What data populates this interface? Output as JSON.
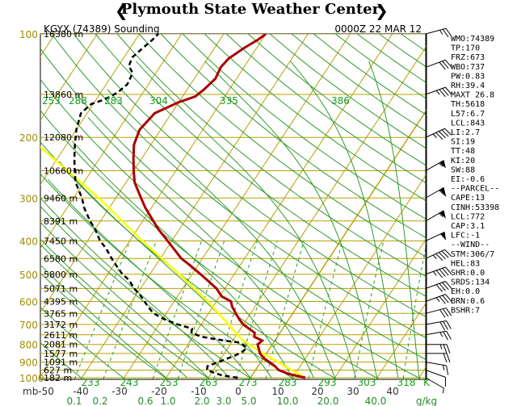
{
  "banner": "Plymouth State Weather Center",
  "header": {
    "station": "KGYX (74389) Sounding",
    "time": "0000Z 22 MAR 12"
  },
  "chart_data": {
    "type": "line",
    "pressure_levels": [
      100,
      200,
      300,
      400,
      500,
      600,
      700,
      800,
      900,
      1000
    ],
    "height_labels": [
      {
        "label": "16380 m",
        "p": 100
      },
      {
        "label": "13860 m",
        "p": 150
      },
      {
        "label": "12080 m",
        "p": 200
      },
      {
        "label": "10660 m",
        "p": 250
      },
      {
        "label": "9460 m",
        "p": 300
      },
      {
        "label": "8391 m",
        "p": 350
      },
      {
        "label": "7450 m",
        "p": 400
      },
      {
        "label": "6580 m",
        "p": 450
      },
      {
        "label": "5800 m",
        "p": 500
      },
      {
        "label": "5071 m",
        "p": 550
      },
      {
        "label": "4395 m",
        "p": 600
      },
      {
        "label": "3765 m",
        "p": 650
      },
      {
        "label": "3172 m",
        "p": 700
      },
      {
        "label": "2611 m",
        "p": 750
      },
      {
        "label": "2081 m",
        "p": 800
      },
      {
        "label": "1577 m",
        "p": 850
      },
      {
        "label": "1091 m",
        "p": 900
      },
      {
        "label": "627 m",
        "p": 950
      },
      {
        "label": "182 m",
        "p": 1000
      }
    ],
    "temperature_ticks": [
      "mb-50",
      "-40",
      "-30",
      "-20",
      "-10",
      "0",
      "10",
      "20",
      "30",
      "40"
    ],
    "mixing_ratio_ticks": [
      "0.1",
      "0.2",
      "0.6",
      "1.0",
      "2.0",
      "3.0",
      "5.0",
      "10.0",
      "20.0",
      "40.0",
      "g/kg"
    ],
    "theta_bottom": [
      "233",
      "243",
      "253",
      "263",
      "273",
      "283",
      "293",
      "303",
      "318",
      "K"
    ],
    "theta_top": [
      "253",
      "288",
      "283",
      "304",
      "335",
      "386"
    ],
    "temperature_profile": [
      {
        "p": 1000,
        "t": 13.0
      },
      {
        "p": 975,
        "t": 8.5
      },
      {
        "p": 950,
        "t": 5.5
      },
      {
        "p": 925,
        "t": 4.0
      },
      {
        "p": 900,
        "t": 2.0
      },
      {
        "p": 875,
        "t": 0.0
      },
      {
        "p": 850,
        "t": -1.5
      },
      {
        "p": 825,
        "t": -2.5
      },
      {
        "p": 800,
        "t": -3.5
      },
      {
        "p": 780,
        "t": -3.0
      },
      {
        "p": 760,
        "t": -5.5
      },
      {
        "p": 740,
        "t": -6.0
      },
      {
        "p": 720,
        "t": -8.0
      },
      {
        "p": 700,
        "t": -10.0
      },
      {
        "p": 680,
        "t": -11.5
      },
      {
        "p": 650,
        "t": -13.5
      },
      {
        "p": 620,
        "t": -15.5
      },
      {
        "p": 600,
        "t": -16.5
      },
      {
        "p": 580,
        "t": -19.5
      },
      {
        "p": 550,
        "t": -22.0
      },
      {
        "p": 520,
        "t": -25.5
      },
      {
        "p": 500,
        "t": -28.0
      },
      {
        "p": 470,
        "t": -32.0
      },
      {
        "p": 450,
        "t": -35.0
      },
      {
        "p": 420,
        "t": -38.5
      },
      {
        "p": 400,
        "t": -41.0
      },
      {
        "p": 370,
        "t": -45.0
      },
      {
        "p": 350,
        "t": -47.5
      },
      {
        "p": 320,
        "t": -51.5
      },
      {
        "p": 300,
        "t": -54.0
      },
      {
        "p": 270,
        "t": -58.0
      },
      {
        "p": 250,
        "t": -60.0
      },
      {
        "p": 230,
        "t": -62.0
      },
      {
        "p": 210,
        "t": -64.0
      },
      {
        "p": 190,
        "t": -65.0
      },
      {
        "p": 170,
        "t": -64.0
      },
      {
        "p": 158,
        "t": -60.0
      },
      {
        "p": 152,
        "t": -57.0
      },
      {
        "p": 145,
        "t": -56.0
      },
      {
        "p": 135,
        "t": -55.0
      },
      {
        "p": 125,
        "t": -55.5
      },
      {
        "p": 118,
        "t": -55.0
      },
      {
        "p": 110,
        "t": -53.0
      },
      {
        "p": 104,
        "t": -51.0
      },
      {
        "p": 100,
        "t": -50.0
      }
    ],
    "dewpoint_profile": [
      {
        "p": 1000,
        "t": -3.0
      },
      {
        "p": 985,
        "t": -7.0
      },
      {
        "p": 970,
        "t": -9.0
      },
      {
        "p": 950,
        "t": -11.5
      },
      {
        "p": 925,
        "t": -12.0
      },
      {
        "p": 900,
        "t": -10.0
      },
      {
        "p": 880,
        "t": -8.5
      },
      {
        "p": 860,
        "t": -7.0
      },
      {
        "p": 840,
        "t": -6.0
      },
      {
        "p": 820,
        "t": -5.5
      },
      {
        "p": 800,
        "t": -7.0
      },
      {
        "p": 790,
        "t": -8.0
      },
      {
        "p": 780,
        "t": -12.0
      },
      {
        "p": 760,
        "t": -18.0
      },
      {
        "p": 740,
        "t": -21.0
      },
      {
        "p": 720,
        "t": -21.5
      },
      {
        "p": 700,
        "t": -25.5
      },
      {
        "p": 680,
        "t": -29.0
      },
      {
        "p": 650,
        "t": -33.0
      },
      {
        "p": 620,
        "t": -35.5
      },
      {
        "p": 600,
        "t": -37.0
      },
      {
        "p": 570,
        "t": -39.5
      },
      {
        "p": 550,
        "t": -41.5
      },
      {
        "p": 520,
        "t": -44.0
      },
      {
        "p": 500,
        "t": -46.5
      },
      {
        "p": 470,
        "t": -49.5
      },
      {
        "p": 450,
        "t": -51.5
      },
      {
        "p": 420,
        "t": -54.5
      },
      {
        "p": 400,
        "t": -57.0
      },
      {
        "p": 370,
        "t": -60.0
      },
      {
        "p": 350,
        "t": -62.5
      },
      {
        "p": 320,
        "t": -66.0
      },
      {
        "p": 300,
        "t": -68.0
      },
      {
        "p": 270,
        "t": -72.0
      },
      {
        "p": 250,
        "t": -74.0
      },
      {
        "p": 230,
        "t": -76.0
      },
      {
        "p": 210,
        "t": -78.0
      },
      {
        "p": 190,
        "t": -80.0
      },
      {
        "p": 170,
        "t": -81.5
      },
      {
        "p": 160,
        "t": -80.5
      },
      {
        "p": 155,
        "t": -78.0
      },
      {
        "p": 148,
        "t": -76.0
      },
      {
        "p": 140,
        "t": -75.0
      },
      {
        "p": 130,
        "t": -75.5
      },
      {
        "p": 124,
        "t": -77.5
      },
      {
        "p": 117,
        "t": -78.0
      },
      {
        "p": 110,
        "t": -77.0
      },
      {
        "p": 104,
        "t": -76.0
      },
      {
        "p": 100,
        "t": -75.5
      }
    ],
    "parcel_profile": [
      {
        "p": 1000,
        "t": 13.0
      },
      {
        "p": 950,
        "t": 8.6
      },
      {
        "p": 900,
        "t": 4.0
      },
      {
        "p": 850,
        "t": -0.8
      },
      {
        "p": 800,
        "t": -5.5
      },
      {
        "p": 772,
        "t": -8.2
      },
      {
        "p": 700,
        "t": -13.5
      },
      {
        "p": 600,
        "t": -22.0
      },
      {
        "p": 500,
        "t": -33.0
      },
      {
        "p": 400,
        "t": -47.0
      },
      {
        "p": 300,
        "t": -64.0
      },
      {
        "p": 200,
        "t": -90.0
      },
      {
        "p": 150,
        "t": -105.0
      },
      {
        "p": 120,
        "t": -116.0
      },
      {
        "p": 100,
        "t": -124.0
      }
    ],
    "wind_barbs": [
      {
        "p": 1000,
        "dir": 300,
        "spd": 5
      },
      {
        "p": 950,
        "dir": 290,
        "spd": 10
      },
      {
        "p": 900,
        "dir": 280,
        "spd": 15
      },
      {
        "p": 850,
        "dir": 270,
        "spd": 20
      },
      {
        "p": 800,
        "dir": 270,
        "spd": 25
      },
      {
        "p": 750,
        "dir": 260,
        "spd": 25
      },
      {
        "p": 700,
        "dir": 260,
        "spd": 30
      },
      {
        "p": 650,
        "dir": 255,
        "spd": 30
      },
      {
        "p": 600,
        "dir": 250,
        "spd": 35
      },
      {
        "p": 550,
        "dir": 250,
        "spd": 40
      },
      {
        "p": 500,
        "dir": 250,
        "spd": 45
      },
      {
        "p": 450,
        "dir": 245,
        "spd": 45
      },
      {
        "p": 400,
        "dir": 245,
        "spd": 50
      },
      {
        "p": 350,
        "dir": 240,
        "spd": 55
      },
      {
        "p": 300,
        "dir": 240,
        "spd": 60
      },
      {
        "p": 250,
        "dir": 240,
        "spd": 55
      },
      {
        "p": 200,
        "dir": 245,
        "spd": 45
      },
      {
        "p": 150,
        "dir": 250,
        "spd": 35
      },
      {
        "p": 125,
        "dir": 250,
        "spd": 30
      },
      {
        "p": 100,
        "dir": 255,
        "spd": 25
      }
    ]
  },
  "indices": [
    "WMO:74389",
    "TP:170",
    "FRZ:673",
    "WBO:737",
    "PW:0.83",
    "RH:39.4",
    "MAXT 26.8",
    "TH:5618",
    "L57:6.7",
    "LCL:843",
    "LI:2.7",
    "SI:19",
    "TT:48",
    "KI:20",
    "SW:88",
    "EI:-0.6",
    "--PARCEL--",
    "CAPE:13",
    "CINH:53398",
    "LCL:772",
    "CAP:3.1",
    "LFC:-1",
    "--WIND--",
    "STM:306/7",
    "HEL:83",
    "SHR:0.0",
    "SRDS:134",
    "EH:0.0",
    "BRN:0.6",
    "BSHR:7"
  ],
  "colors": {
    "isobar": "#b8a000",
    "isotherm": "#b8a000",
    "dry_adiabat": "#2e9a2e",
    "moist_adiabat": "#2e9a2e",
    "mixing_ratio": "#2e9a2e",
    "temperature": "#aa0000",
    "dewpoint": "#000000",
    "parcel": "#ffff00"
  }
}
